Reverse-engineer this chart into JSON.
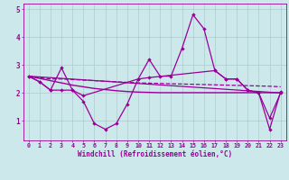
{
  "xlabel": "Windchill (Refroidissement éolien,°C)",
  "bg_color": "#cce8ea",
  "line_color": "#990099",
  "grid_color": "#aacccc",
  "xlim": [
    -0.5,
    23.5
  ],
  "ylim": [
    0.3,
    5.2
  ],
  "yticks": [
    1,
    2,
    3,
    4,
    5
  ],
  "xticks": [
    0,
    1,
    2,
    3,
    4,
    5,
    6,
    7,
    8,
    9,
    10,
    11,
    12,
    13,
    14,
    15,
    16,
    17,
    18,
    19,
    20,
    21,
    22,
    23
  ],
  "series": [
    {
      "x": [
        0,
        1,
        2,
        3,
        4,
        5,
        6,
        7,
        8,
        9,
        10,
        11,
        12,
        13,
        14,
        15,
        16,
        17,
        18,
        19,
        20,
        21,
        22,
        23
      ],
      "y": [
        2.6,
        2.4,
        2.1,
        2.1,
        2.1,
        1.7,
        0.9,
        0.7,
        0.9,
        1.6,
        2.5,
        3.2,
        2.6,
        2.6,
        3.6,
        4.8,
        4.3,
        2.8,
        2.5,
        2.5,
        2.1,
        2.0,
        1.1,
        2.0
      ],
      "marker": true,
      "linestyle": "-",
      "linewidth": 0.9
    },
    {
      "x": [
        0,
        1,
        2,
        3,
        4,
        5,
        6,
        7,
        8,
        9,
        10,
        11,
        12,
        13,
        14,
        15,
        16,
        17,
        18,
        19,
        20,
        21,
        22,
        23
      ],
      "y": [
        2.6,
        2.55,
        2.5,
        2.5,
        2.48,
        2.46,
        2.44,
        2.42,
        2.4,
        2.38,
        2.36,
        2.35,
        2.34,
        2.33,
        2.32,
        2.31,
        2.3,
        2.29,
        2.28,
        2.27,
        2.26,
        2.25,
        2.24,
        2.22
      ],
      "marker": false,
      "linestyle": "--",
      "linewidth": 0.9
    },
    {
      "x": [
        0,
        1,
        2,
        3,
        4,
        5,
        6,
        7,
        8,
        9,
        10,
        11,
        12,
        13,
        14,
        15,
        16,
        17,
        18,
        19,
        20,
        21,
        22,
        23
      ],
      "y": [
        2.6,
        2.52,
        2.44,
        2.36,
        2.28,
        2.22,
        2.16,
        2.12,
        2.08,
        2.05,
        2.03,
        2.02,
        2.01,
        2.01,
        2.01,
        2.01,
        2.01,
        2.01,
        2.01,
        2.01,
        2.01,
        2.01,
        2.01,
        2.01
      ],
      "marker": false,
      "linestyle": "-",
      "linewidth": 1.0
    },
    {
      "x": [
        0,
        23
      ],
      "y": [
        2.6,
        2.0
      ],
      "marker": false,
      "linestyle": "-",
      "linewidth": 0.9
    },
    {
      "x": [
        0,
        1,
        2,
        3,
        4,
        5,
        10,
        11,
        17,
        18,
        19,
        20,
        21,
        22,
        23
      ],
      "y": [
        2.6,
        2.4,
        2.1,
        2.9,
        2.1,
        1.9,
        2.5,
        2.55,
        2.8,
        2.5,
        2.5,
        2.1,
        2.0,
        0.7,
        2.05
      ],
      "marker": true,
      "linestyle": "-",
      "linewidth": 0.9
    }
  ]
}
